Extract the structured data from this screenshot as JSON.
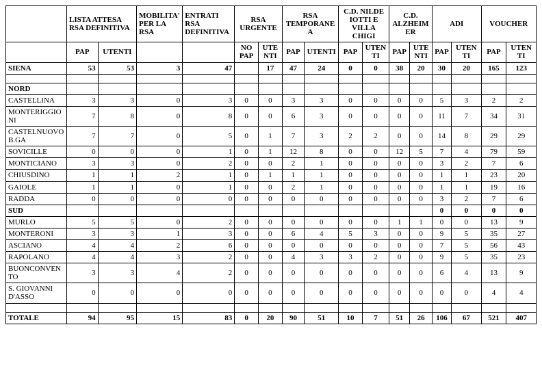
{
  "headers": {
    "lista": "LISTA ATTESA RSA DEFINITIVA",
    "mobilita": "MOBILITA' PER LA RSA",
    "entrati": "ENTRATI RSA DEFINITIVA",
    "rsa_urgente": "RSA URGENTE",
    "rsa_temp": "RSA TEMPORANEA",
    "cd_nilde": "C.D. NILDE IOTTI E VILLA CHIGI",
    "cd_alz": "C.D. ALZHEIMER",
    "adi": "ADI",
    "voucher": "VOUCHER",
    "pap": "PAP",
    "utenti": "UTENTI",
    "nopap": "NO PAP",
    "ute_nti": "UTENTI",
    "ute_nti2": "UTENTI",
    "pa_p": "PAP"
  },
  "rows": [
    {
      "name": "SIENA",
      "bold": true,
      "lista_pap": "53",
      "lista_ut": "53",
      "mob": "3",
      "ent": "47",
      "u_nopap": "",
      "u_ut": "17",
      "t_pap": "47",
      "t_ut": "24",
      "n_pap": "0",
      "n_ut": "0",
      "a_pap": "38",
      "a_ut": "20",
      "adi_pap": "30",
      "adi_ut": "20",
      "v_pap": "165",
      "v_ut": "123"
    },
    {
      "spacer": true
    },
    {
      "name": "NORD",
      "bold": true,
      "section": true
    },
    {
      "name": "CASTELLINA",
      "lista_pap": "3",
      "lista_ut": "3",
      "mob": "0",
      "ent": "3",
      "u_nopap": "0",
      "u_ut": "0",
      "t_pap": "3",
      "t_ut": "3",
      "n_pap": "0",
      "n_ut": "0",
      "a_pap": "0",
      "a_ut": "0",
      "adi_pap": "5",
      "adi_ut": "3",
      "v_pap": "2",
      "v_ut": "2"
    },
    {
      "name": "MONTERIGGIONI",
      "lista_pap": "7",
      "lista_ut": "8",
      "mob": "0",
      "ent": "8",
      "u_nopap": "0",
      "u_ut": "0",
      "t_pap": "6",
      "t_ut": "3",
      "n_pap": "0",
      "n_ut": "0",
      "a_pap": "0",
      "a_ut": "0",
      "adi_pap": "11",
      "adi_ut": "7",
      "v_pap": "34",
      "v_ut": "31"
    },
    {
      "name": "CASTELNUOVO B.GA",
      "lista_pap": "7",
      "lista_ut": "7",
      "mob": "0",
      "ent": "5",
      "u_nopap": "0",
      "u_ut": "1",
      "t_pap": "7",
      "t_ut": "3",
      "n_pap": "2",
      "n_ut": "2",
      "a_pap": "0",
      "a_ut": "0",
      "adi_pap": "14",
      "adi_ut": "8",
      "v_pap": "29",
      "v_ut": "29"
    },
    {
      "name": "SOVICILLE",
      "lista_pap": "0",
      "lista_ut": "0",
      "mob": "0",
      "ent": "1",
      "u_nopap": "0",
      "u_ut": "1",
      "t_pap": "12",
      "t_ut": "8",
      "n_pap": "0",
      "n_ut": "0",
      "a_pap": "12",
      "a_ut": "5",
      "adi_pap": "7",
      "adi_ut": "4",
      "v_pap": "79",
      "v_ut": "59"
    },
    {
      "name": "MONTICIANO",
      "lista_pap": "3",
      "lista_ut": "3",
      "mob": "0",
      "ent": "2",
      "u_nopap": "0",
      "u_ut": "0",
      "t_pap": "2",
      "t_ut": "1",
      "n_pap": "0",
      "n_ut": "0",
      "a_pap": "0",
      "a_ut": "0",
      "adi_pap": "3",
      "adi_ut": "2",
      "v_pap": "7",
      "v_ut": "6"
    },
    {
      "name": "CHIUSDINO",
      "lista_pap": "1",
      "lista_ut": "1",
      "mob": "2",
      "ent": "1",
      "u_nopap": "0",
      "u_ut": "1",
      "t_pap": "1",
      "t_ut": "1",
      "n_pap": "0",
      "n_ut": "0",
      "a_pap": "0",
      "a_ut": "0",
      "adi_pap": "1",
      "adi_ut": "1",
      "v_pap": "23",
      "v_ut": "20"
    },
    {
      "name": "GAIOLE",
      "lista_pap": "1",
      "lista_ut": "1",
      "mob": "0",
      "ent": "1",
      "u_nopap": "0",
      "u_ut": "0",
      "t_pap": "2",
      "t_ut": "1",
      "n_pap": "0",
      "n_ut": "0",
      "a_pap": "0",
      "a_ut": "0",
      "adi_pap": "1",
      "adi_ut": "1",
      "v_pap": "19",
      "v_ut": "16"
    },
    {
      "name": "RADDA",
      "lista_pap": "0",
      "lista_ut": "0",
      "mob": "0",
      "ent": "0",
      "u_nopap": "0",
      "u_ut": "0",
      "t_pap": "0",
      "t_ut": "0",
      "n_pap": "0",
      "n_ut": "0",
      "a_pap": "0",
      "a_ut": "0",
      "adi_pap": "3",
      "adi_ut": "2",
      "v_pap": "7",
      "v_ut": "6"
    },
    {
      "name": "SUD",
      "bold": true,
      "section": true,
      "adi_pap": "0",
      "adi_ut": "0",
      "v_pap": "0",
      "v_ut": "0"
    },
    {
      "name": "MURLO",
      "lista_pap": "5",
      "lista_ut": "5",
      "mob": "0",
      "ent": "2",
      "u_nopap": "0",
      "u_ut": "0",
      "t_pap": "0",
      "t_ut": "0",
      "n_pap": "0",
      "n_ut": "0",
      "a_pap": "1",
      "a_ut": "1",
      "adi_pap": "0",
      "adi_ut": "0",
      "v_pap": "13",
      "v_ut": "9"
    },
    {
      "name": "MONTERONI",
      "lista_pap": "3",
      "lista_ut": "3",
      "mob": "1",
      "ent": "3",
      "u_nopap": "0",
      "u_ut": "0",
      "t_pap": "6",
      "t_ut": "4",
      "n_pap": "5",
      "n_ut": "3",
      "a_pap": "0",
      "a_ut": "0",
      "adi_pap": "9",
      "adi_ut": "5",
      "v_pap": "35",
      "v_ut": "27"
    },
    {
      "name": "ASCIANO",
      "lista_pap": "4",
      "lista_ut": "4",
      "mob": "2",
      "ent": "6",
      "u_nopap": "0",
      "u_ut": "0",
      "t_pap": "0",
      "t_ut": "0",
      "n_pap": "0",
      "n_ut": "0",
      "a_pap": "0",
      "a_ut": "0",
      "adi_pap": "7",
      "adi_ut": "5",
      "v_pap": "56",
      "v_ut": "43"
    },
    {
      "name": "RAPOLANO",
      "lista_pap": "4",
      "lista_ut": "4",
      "mob": "3",
      "ent": "2",
      "u_nopap": "0",
      "u_ut": "0",
      "t_pap": "4",
      "t_ut": "3",
      "n_pap": "3",
      "n_ut": "2",
      "a_pap": "0",
      "a_ut": "0",
      "adi_pap": "9",
      "adi_ut": "5",
      "v_pap": "35",
      "v_ut": "23"
    },
    {
      "name": "BUONCONVENTO",
      "lista_pap": "3",
      "lista_ut": "3",
      "mob": "4",
      "ent": "2",
      "u_nopap": "0",
      "u_ut": "0",
      "t_pap": "0",
      "t_ut": "0",
      "n_pap": "0",
      "n_ut": "0",
      "a_pap": "0",
      "a_ut": "0",
      "adi_pap": "6",
      "adi_ut": "4",
      "v_pap": "13",
      "v_ut": "9"
    },
    {
      "name": "S. GIOVANNI D'ASSO",
      "lista_pap": "0",
      "lista_ut": "0",
      "mob": "0",
      "ent": "0",
      "u_nopap": "0",
      "u_ut": "0",
      "t_pap": "0",
      "t_ut": "0",
      "n_pap": "0",
      "n_ut": "0",
      "a_pap": "0",
      "a_ut": "0",
      "adi_pap": "0",
      "adi_ut": "0",
      "v_pap": "4",
      "v_ut": "4"
    },
    {
      "spacer": true
    },
    {
      "name": "TOTALE",
      "bold": true,
      "lista_pap": "94",
      "lista_ut": "95",
      "mob": "15",
      "ent": "83",
      "u_nopap": "0",
      "u_ut": "20",
      "t_pap": "90",
      "t_ut": "51",
      "n_pap": "10",
      "n_ut": "7",
      "a_pap": "51",
      "a_ut": "26",
      "adi_pap": "106",
      "adi_ut": "67",
      "v_pap": "521",
      "v_ut": "407"
    }
  ]
}
